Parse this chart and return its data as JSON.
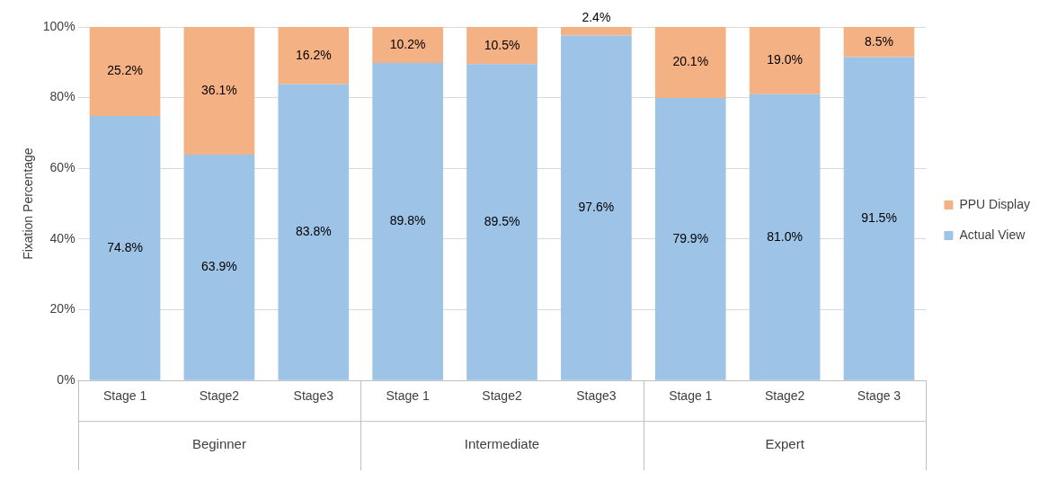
{
  "chart_data": {
    "type": "bar",
    "stacked": true,
    "ylabel": "Fixation Percentage",
    "categories": [
      "Stage 1",
      "Stage2",
      "Stage3",
      "Stage 1",
      "Stage2",
      "Stage3",
      "Stage 1",
      "Stage2",
      "Stage 3"
    ],
    "series": [
      {
        "name": "Actual View",
        "color": "#9dc3e6",
        "values": [
          74.8,
          63.9,
          83.8,
          89.8,
          89.5,
          97.6,
          79.9,
          81.0,
          91.5
        ],
        "value_labels": [
          "74.8%",
          "63.9%",
          "83.8%",
          "89.8%",
          "89.5%",
          "97.6%",
          "79.9%",
          "81.0%",
          "91.5%"
        ]
      },
      {
        "name": "PPU Display",
        "color": "#f4b183",
        "values": [
          25.2,
          36.1,
          16.2,
          10.2,
          10.5,
          2.4,
          20.1,
          19.0,
          8.5
        ],
        "value_labels": [
          "25.2%",
          "36.1%",
          "16.2%",
          "10.2%",
          "10.5%",
          "2.4%",
          "20.1%",
          "19.0%",
          "8.5%"
        ]
      }
    ],
    "ylim": [
      0,
      100
    ],
    "yticks": [
      {
        "value": 0,
        "label": "0%"
      },
      {
        "value": 20,
        "label": "20%"
      },
      {
        "value": 40,
        "label": "40%"
      },
      {
        "value": 60,
        "label": "60%"
      },
      {
        "value": 80,
        "label": "80%"
      },
      {
        "value": 100,
        "label": "100%"
      }
    ],
    "grid": "y",
    "legend": "right",
    "annotations": [
      "Beginner",
      "Intermediate",
      "Expert"
    ]
  }
}
